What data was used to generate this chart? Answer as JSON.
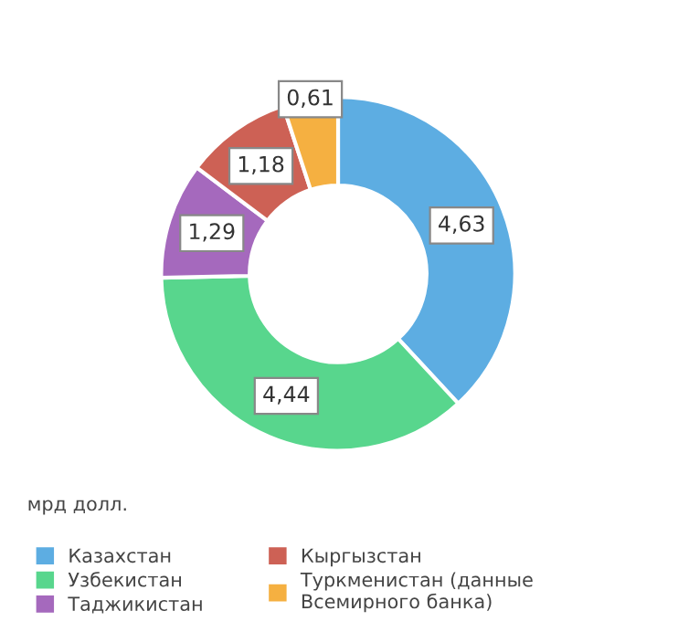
{
  "chart_data": {
    "type": "donut",
    "categories": [
      "Казахстан",
      "Узбекистан",
      "Таджикистан",
      "Кыргызстан",
      "Туркменистан (данные\nВсемирного банка)"
    ],
    "values": [
      4.63,
      4.44,
      1.29,
      1.18,
      0.61
    ],
    "value_labels": [
      "4,63",
      "4,44",
      "1,29",
      "1,18",
      "0,61"
    ],
    "colors": [
      "#5dade2",
      "#58d68d",
      "#a569bd",
      "#cd6155",
      "#f5b041"
    ],
    "annotations": [
      "мрд долл."
    ],
    "legend": "bottom"
  }
}
